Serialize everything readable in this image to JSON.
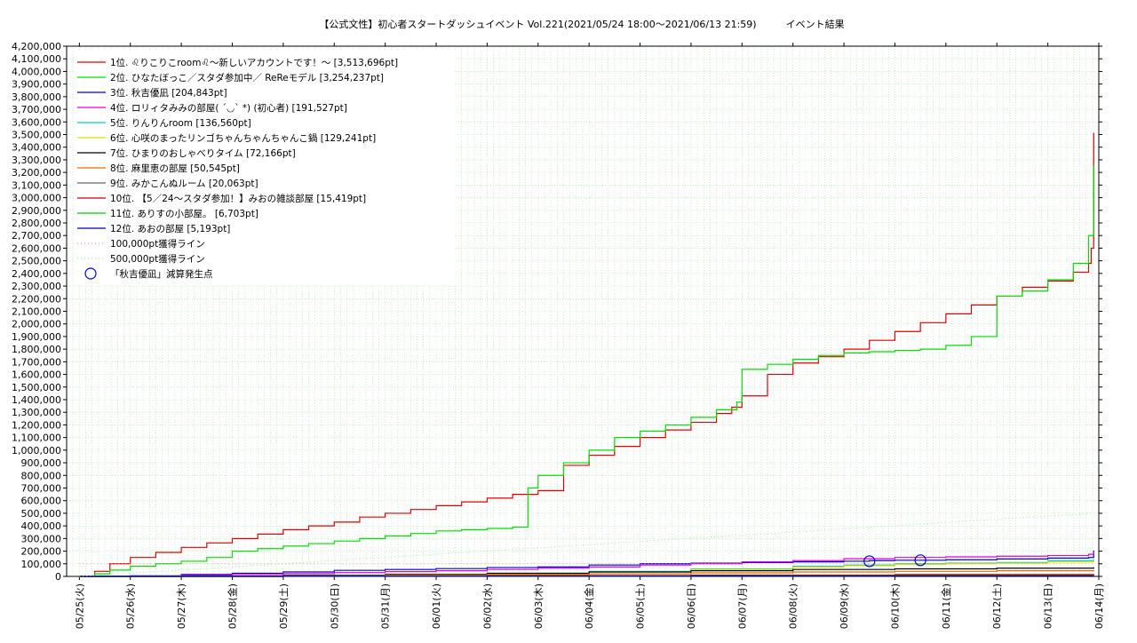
{
  "chart_data": {
    "type": "line",
    "title": "【公式文性】初心者スタートダッシュイベント Vol.221(2021/05/24 18:00〜2021/06/13 21:59)　　　イベント結果",
    "ylim": [
      0,
      4200000
    ],
    "y_step": 100000,
    "x_tick_labels": [
      "05/25(火)",
      "05/26(水)",
      "05/27(木)",
      "05/28(金)",
      "05/29(土)",
      "05/30(日)",
      "05/31(月)",
      "06/01(火)",
      "06/02(水)",
      "06/03(木)",
      "06/04(金)",
      "06/05(土)",
      "06/06(日)",
      "06/07(月)",
      "06/08(火)",
      "06/09(水)",
      "06/10(木)",
      "06/11(金)",
      "06/12(土)",
      "06/13(日)",
      "06/14(月)"
    ],
    "x_range_days": [
      -0.25,
      20.0
    ],
    "grid": true,
    "legend_position": "top-left",
    "series": [
      {
        "name": "1位. ♌りこりこroom♌〜新しいアカウントです！〜 [3,513,696pt]",
        "color": "#e00000",
        "x": [
          0,
          0.3,
          0.6,
          1,
          1.5,
          2,
          2.5,
          3,
          3.5,
          4,
          4.5,
          5,
          5.5,
          6,
          6.5,
          7,
          7.5,
          8,
          8.5,
          9,
          9.5,
          10,
          10.5,
          11,
          11.5,
          12,
          12.5,
          12.8,
          13,
          13.5,
          14,
          14.5,
          15,
          15.5,
          16,
          16.5,
          17,
          17.5,
          18,
          18.5,
          19,
          19.5,
          19.8,
          19.85,
          19.9
        ],
        "y": [
          0,
          40000,
          100000,
          150000,
          190000,
          230000,
          265000,
          300000,
          335000,
          370000,
          400000,
          430000,
          470000,
          500000,
          530000,
          560000,
          590000,
          620000,
          650000,
          680000,
          880000,
          960000,
          1030000,
          1100000,
          1160000,
          1220000,
          1290000,
          1340000,
          1430000,
          1600000,
          1690000,
          1740000,
          1800000,
          1870000,
          1940000,
          2010000,
          2080000,
          2150000,
          2220000,
          2290000,
          2340000,
          2410000,
          2480000,
          2600000,
          3513696
        ]
      },
      {
        "name": "2位. ひなたぼっこ／スタダ参加中／ ReReモデル [3,254,237pt]",
        "color": "#00dd00",
        "x": [
          0,
          0.3,
          0.6,
          1,
          1.5,
          2,
          2.5,
          3,
          3.5,
          4,
          4.5,
          5,
          5.5,
          6,
          6.5,
          7,
          7.5,
          8,
          8.5,
          8.8,
          9,
          9.5,
          10,
          10.5,
          11,
          11.5,
          12,
          12.5,
          12.9,
          13,
          13.5,
          14,
          14.5,
          15,
          15.5,
          16,
          16.5,
          17,
          17.5,
          18,
          18.5,
          19,
          19.5,
          19.8,
          19.9
        ],
        "y": [
          0,
          20000,
          50000,
          80000,
          100000,
          120000,
          150000,
          200000,
          220000,
          240000,
          260000,
          280000,
          300000,
          320000,
          340000,
          360000,
          370000,
          380000,
          390000,
          700000,
          800000,
          900000,
          1000000,
          1100000,
          1150000,
          1200000,
          1260000,
          1320000,
          1380000,
          1640000,
          1680000,
          1720000,
          1750000,
          1770000,
          1780000,
          1790000,
          1800000,
          1830000,
          1900000,
          2220000,
          2260000,
          2350000,
          2480000,
          2700000,
          3254237
        ]
      },
      {
        "name": "3位. 秋吉優凪 [204,843pt]",
        "color": "#0000cc",
        "x": [
          0,
          1,
          2,
          3,
          4,
          5,
          6,
          7,
          8,
          9,
          10,
          11,
          12,
          13,
          14,
          15,
          15.5,
          16,
          17,
          18,
          19,
          19.8,
          19.9
        ],
        "y": [
          0,
          5000,
          15000,
          25000,
          35000,
          48000,
          55000,
          62000,
          70000,
          75000,
          90000,
          100000,
          105000,
          110000,
          115000,
          120000,
          125000,
          128000,
          132000,
          138000,
          145000,
          150000,
          204843
        ]
      },
      {
        "name": "4位. ロリィタみみの部屋( ´◡` *) (初心者) [191,527pt]",
        "color": "#dd00dd",
        "x": [
          0,
          1,
          2,
          3,
          4,
          5,
          6,
          7,
          8,
          9,
          10,
          11,
          12,
          13,
          14,
          15,
          16,
          17,
          18,
          19,
          19.8,
          19.9
        ],
        "y": [
          0,
          3000,
          8000,
          15000,
          22000,
          30000,
          38000,
          45000,
          55000,
          65000,
          75000,
          90000,
          100000,
          115000,
          125000,
          140000,
          150000,
          155000,
          160000,
          165000,
          175000,
          191527
        ]
      },
      {
        "name": "5位. りんりんroom [136,560pt]",
        "color": "#00cccc",
        "x": [
          0,
          2,
          4,
          6,
          8,
          10,
          12,
          14,
          15,
          16,
          17,
          18,
          19,
          19.9
        ],
        "y": [
          0,
          3000,
          8000,
          15000,
          25000,
          40000,
          60000,
          80000,
          90000,
          100000,
          105000,
          110000,
          125000,
          136560
        ]
      },
      {
        "name": "6位. 心咲のまったリンゴちゃんちゃんちゃんこ鍋 [129,241pt]",
        "color": "#dddd00",
        "x": [
          0,
          2,
          4,
          6,
          8,
          10,
          12,
          14,
          15,
          16,
          17,
          18,
          19,
          19.9
        ],
        "y": [
          0,
          2000,
          6000,
          12000,
          20000,
          35000,
          55000,
          75000,
          85000,
          95000,
          100000,
          105000,
          115000,
          129241
        ]
      },
      {
        "name": "7位. ひまりのおしゃべりタイム [72,166pt]",
        "color": "#000000",
        "x": [
          0,
          2,
          4,
          6,
          8,
          10,
          12,
          14,
          16,
          18,
          19.9
        ],
        "y": [
          0,
          3000,
          8000,
          15000,
          25000,
          35000,
          45000,
          55000,
          60000,
          65000,
          72166
        ]
      },
      {
        "name": "8位. 麻里恵の部屋 [50,545pt]",
        "color": "#ee6600",
        "x": [
          0,
          2,
          4,
          6,
          8,
          10,
          12,
          14,
          16,
          18,
          19.9
        ],
        "y": [
          0,
          2000,
          5000,
          10000,
          15000,
          20000,
          28000,
          35000,
          40000,
          45000,
          50545
        ]
      },
      {
        "name": "9位. みかこんぬルーム [20,063pt]",
        "color": "#666666",
        "x": [
          0,
          4,
          8,
          12,
          16,
          19.9
        ],
        "y": [
          0,
          3000,
          7000,
          11000,
          16000,
          20063
        ]
      },
      {
        "name": "10位. 【5／24〜スタダ参加！】みおの雑談部屋 [15,419pt]",
        "color": "#cc0000",
        "x": [
          0,
          4,
          8,
          12,
          16,
          19.9
        ],
        "y": [
          0,
          2000,
          5000,
          8000,
          12000,
          15419
        ]
      },
      {
        "name": "11位. ありすの小部屋。 [6,703pt]",
        "color": "#00cc00",
        "x": [
          0,
          4,
          8,
          12,
          16,
          19.9
        ],
        "y": [
          0,
          1000,
          2000,
          3500,
          5000,
          6703
        ]
      },
      {
        "name": "12位. あおの部屋 [5,193pt]",
        "color": "#0000aa",
        "x": [
          0,
          4,
          8,
          12,
          16,
          19.9
        ],
        "y": [
          0,
          800,
          1600,
          2800,
          4000,
          5193
        ]
      },
      {
        "name": "100,000pt獲得ライン",
        "color": "#ff9999",
        "dashed": true,
        "x": [
          0,
          19.9
        ],
        "y": [
          100000,
          100000
        ]
      },
      {
        "name": "500,000pt獲得ライン",
        "color": "#99ee99",
        "dashed": true,
        "x": [
          0,
          19.9
        ],
        "y": [
          0,
          500000
        ]
      }
    ],
    "markers": {
      "name": "「秋吉優凪」減算発生点",
      "color": "#0000cc",
      "x": [
        15.5,
        16.5
      ],
      "y": [
        120000,
        128000
      ]
    }
  }
}
